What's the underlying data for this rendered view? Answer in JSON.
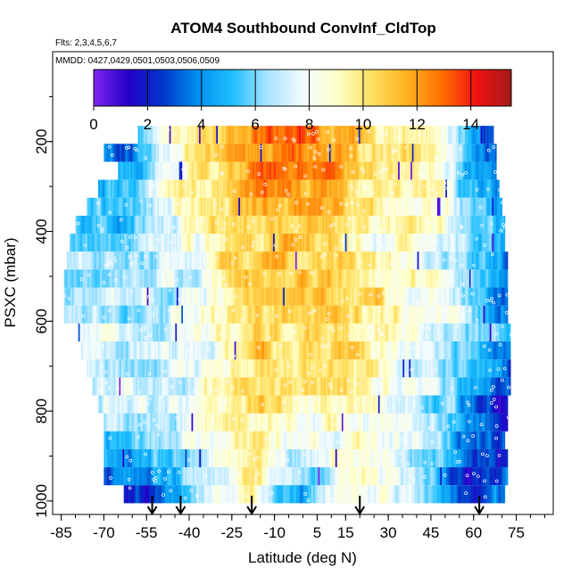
{
  "chart_data": {
    "type": "heatmap",
    "title": "ATOM4 Southbound ConvInf_CldTop",
    "flights_label": "Flts: 2,3,4,5,6,7",
    "dates_label": "MMDD: 0427,0429,0501,0503,0506,0509",
    "xlabel": "Latitude (deg N)",
    "ylabel": "PSXC (mbar)",
    "xlim": [
      -88,
      88
    ],
    "ylim": [
      1030,
      0
    ],
    "x_ticks": [
      -85,
      -70,
      -55,
      -40,
      -25,
      -10,
      5,
      15,
      30,
      45,
      60,
      75
    ],
    "x_tick_labels": [
      "-85",
      "-70",
      "-55",
      "-40",
      "-25",
      "-10",
      "5",
      "15",
      "30",
      "45",
      "60",
      "75"
    ],
    "y_ticks": [
      200,
      400,
      600,
      800,
      1000
    ],
    "y_tick_labels": [
      "200",
      "400",
      "600",
      "800",
      "1000"
    ],
    "colorbar": {
      "min": 0,
      "max": 15.5,
      "ticks": [
        0,
        2,
        4,
        6,
        8,
        10,
        12,
        14
      ],
      "tick_labels": [
        "0",
        "2",
        "4",
        "6",
        "8",
        "10",
        "12",
        "14"
      ],
      "colors": [
        "#7f25ef",
        "#2400c8",
        "#0038c8",
        "#0090ee",
        "#20c0ff",
        "#a8e4ff",
        "#f2fbff",
        "#ffffc8",
        "#ffe060",
        "#ffb020",
        "#ff7000",
        "#f21010",
        "#a51a1a"
      ]
    },
    "pressure_levels": [
      185,
      225,
      265,
      305,
      345,
      385,
      425,
      465,
      505,
      545,
      585,
      625,
      665,
      705,
      745,
      785,
      825,
      865,
      905,
      945,
      985
    ],
    "level_extent": [
      [
        -58,
        67
      ],
      [
        -70,
        68
      ],
      [
        -65,
        68
      ],
      [
        -72,
        69
      ],
      [
        -76,
        70
      ],
      [
        -80,
        71
      ],
      [
        -82,
        71
      ],
      [
        -83,
        72
      ],
      [
        -84,
        72
      ],
      [
        -84,
        72
      ],
      [
        -84,
        72
      ],
      [
        -79,
        73
      ],
      [
        -78,
        73
      ],
      [
        -76,
        73
      ],
      [
        -74,
        73
      ],
      [
        -72,
        72
      ],
      [
        -70,
        72
      ],
      [
        -70,
        71
      ],
      [
        -70,
        72
      ],
      [
        -70,
        72
      ],
      [
        -63,
        71
      ]
    ],
    "profile_pressure_mbar": [
      200,
      400,
      600,
      800,
      1000
    ],
    "profile_latitude_deg": [
      -60,
      -45,
      -30,
      -15,
      0,
      15,
      30,
      45,
      60,
      72
    ],
    "profile_days": [
      [
        4,
        9,
        11,
        13,
        13,
        12,
        10,
        9,
        4,
        2
      ],
      [
        6,
        8,
        10,
        11,
        11,
        10,
        9,
        9,
        6,
        4
      ],
      [
        7,
        7,
        9,
        11,
        11,
        11,
        9,
        8,
        6,
        4
      ],
      [
        7,
        7,
        9,
        10,
        9,
        9,
        8,
        7,
        4,
        2
      ],
      [
        2,
        5,
        8,
        9,
        4,
        9,
        8,
        6,
        2,
        4
      ]
    ],
    "flight_turn_arrows_lat": [
      -53,
      -43,
      -18,
      20,
      62
    ]
  }
}
